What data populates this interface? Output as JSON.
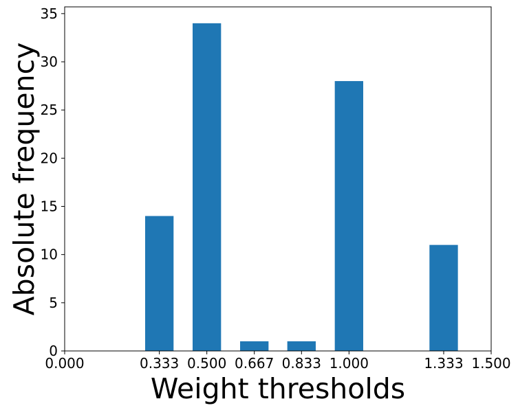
{
  "chart_data": {
    "type": "bar",
    "title": "",
    "xlabel": "Weight thresholds",
    "ylabel": "Absolute frequency",
    "x": [
      0.333,
      0.5,
      0.667,
      0.833,
      1.0,
      1.333
    ],
    "values": [
      14,
      34,
      1,
      1,
      28,
      11
    ],
    "bar_width": 0.1,
    "xlim": [
      0.0,
      1.5
    ],
    "ylim": [
      0,
      35.7
    ],
    "xticks": [
      0.0,
      0.333,
      0.5,
      0.667,
      0.833,
      1.0,
      1.333,
      1.5
    ],
    "xtick_labels": [
      "0.000",
      "0.333",
      "0.500",
      "0.667",
      "0.833",
      "1.000",
      "1.333",
      "1.500"
    ],
    "yticks": [
      0,
      5,
      10,
      15,
      20,
      25,
      30,
      35
    ],
    "ytick_labels": [
      "0",
      "5",
      "10",
      "15",
      "20",
      "25",
      "30",
      "35"
    ],
    "bar_color": "#1f77b4",
    "grid": false,
    "legend": "none"
  }
}
